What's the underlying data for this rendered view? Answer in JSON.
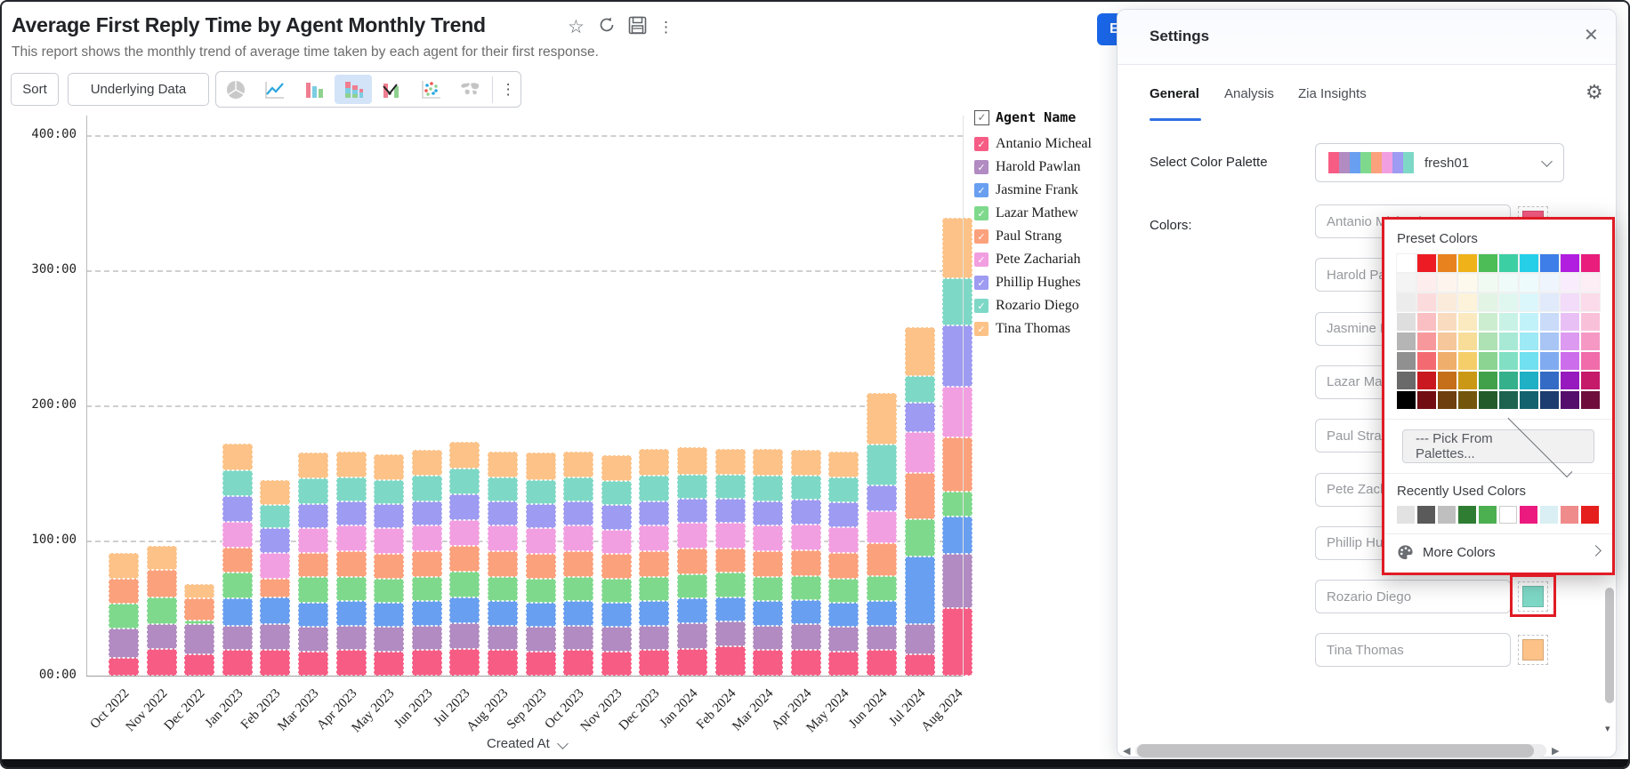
{
  "report": {
    "title": "Average First Reply Time by Agent Monthly Trend",
    "subtitle": "This report shows the monthly trend of average time taken by each agent for their first response."
  },
  "toolbar": {
    "sort": "Sort",
    "underlying_data": "Underlying Data"
  },
  "edit_button_label": "E",
  "icons": {
    "star": "☆",
    "kebab": "⋮",
    "close": "✕",
    "gear": "⚙",
    "check": "✓",
    "left_arrow": "◀",
    "right_arrow": "▶",
    "down_arrow": "▾"
  },
  "chart_data": {
    "type": "bar",
    "stacked": true,
    "title": "Average First Reply Time by Agent Monthly Trend",
    "xlabel": "Created At",
    "ylabel": "",
    "ylim": [
      0,
      400
    ],
    "y_tick_values": [
      0,
      100,
      200,
      300,
      400
    ],
    "y_tick_labels": [
      "00:00",
      "100:00",
      "200:00",
      "300:00",
      "400:00"
    ],
    "grid": "horizontal-dashed",
    "legend_title": "Agent Name",
    "legend_position": "right",
    "categories": [
      "Oct 2022",
      "Nov 2022",
      "Dec 2022",
      "Jan 2023",
      "Feb 2023",
      "Mar 2023",
      "Apr 2023",
      "May 2023",
      "Jun 2023",
      "Jul 2023",
      "Aug 2023",
      "Sep 2023",
      "Oct 2023",
      "Nov 2023",
      "Dec 2023",
      "Jan 2024",
      "Feb 2024",
      "Mar 2024",
      "Apr 2024",
      "May 2024",
      "Jun 2024",
      "Jul 2024",
      "Aug 2024"
    ],
    "series": [
      {
        "name": "Antanio Micheal",
        "color": "#f75c84",
        "values": [
          13,
          20,
          16,
          19,
          19,
          18,
          19,
          18,
          19,
          20,
          19,
          18,
          19,
          18,
          19,
          20,
          22,
          19,
          19,
          18,
          19,
          16,
          50
        ]
      },
      {
        "name": "Harold Pawlan",
        "color": "#b18bc1",
        "values": [
          22,
          18,
          22,
          18,
          19,
          18,
          18,
          18,
          18,
          19,
          18,
          18,
          18,
          18,
          18,
          19,
          18,
          18,
          19,
          18,
          18,
          22,
          40
        ]
      },
      {
        "name": "Jasmine Frank",
        "color": "#699ff0",
        "values": [
          0,
          0,
          0,
          20,
          20,
          18,
          18,
          18,
          18,
          19,
          18,
          18,
          18,
          18,
          18,
          18,
          18,
          18,
          18,
          18,
          18,
          50,
          28
        ]
      },
      {
        "name": "Lazar Mathew",
        "color": "#7fd98d",
        "values": [
          18,
          20,
          3,
          19,
          0,
          19,
          18,
          18,
          18,
          19,
          18,
          18,
          18,
          18,
          18,
          18,
          18,
          18,
          18,
          18,
          19,
          28,
          18
        ]
      },
      {
        "name": "Paul Strang",
        "color": "#fba17c",
        "values": [
          19,
          20,
          16,
          19,
          14,
          18,
          19,
          18,
          19,
          19,
          19,
          18,
          19,
          18,
          19,
          19,
          18,
          19,
          19,
          19,
          24,
          34,
          40
        ]
      },
      {
        "name": "Pete Zachariah",
        "color": "#f29fe1",
        "values": [
          0,
          0,
          0,
          19,
          19,
          18,
          19,
          19,
          19,
          19,
          19,
          19,
          19,
          18,
          19,
          19,
          19,
          19,
          19,
          19,
          24,
          30,
          38
        ]
      },
      {
        "name": "Phillip Hughes",
        "color": "#9e9bf2",
        "values": [
          0,
          0,
          0,
          19,
          18,
          18,
          18,
          18,
          18,
          19,
          18,
          18,
          18,
          18,
          18,
          18,
          18,
          18,
          18,
          18,
          19,
          22,
          45
        ]
      },
      {
        "name": "Rozario Diego",
        "color": "#7ed8c6",
        "values": [
          0,
          0,
          0,
          19,
          17,
          19,
          18,
          18,
          19,
          19,
          18,
          18,
          18,
          18,
          19,
          18,
          18,
          19,
          18,
          19,
          30,
          20,
          35
        ]
      },
      {
        "name": "Tina Thomas",
        "color": "#fcc287",
        "values": [
          19,
          18,
          11,
          20,
          19,
          19,
          19,
          19,
          19,
          20,
          19,
          20,
          19,
          19,
          20,
          20,
          19,
          20,
          19,
          19,
          38,
          36,
          45
        ]
      }
    ]
  },
  "settings": {
    "title": "Settings",
    "tabs": [
      {
        "label": "General",
        "active": true
      },
      {
        "label": "Analysis",
        "active": false
      },
      {
        "label": "Zia Insights",
        "active": false
      }
    ],
    "palette": {
      "label": "Select Color Palette",
      "value": "fresh01",
      "chip_colors": [
        "#f75c84",
        "#b18bc1",
        "#699ff0",
        "#7fd98d",
        "#fba17c",
        "#f29fe1",
        "#9e9bf2",
        "#7ed8c6"
      ]
    },
    "colors_label": "Colors:",
    "popup": {
      "preset_title": "Preset Colors",
      "preset_base_colors": [
        "#ffffff",
        "#ed1c24",
        "#e8821e",
        "#efb319",
        "#4cbd57",
        "#3dcfa4",
        "#25cfe8",
        "#3d7ee8",
        "#b11ee0",
        "#e81d7c"
      ],
      "preset_gray_column": [
        "#ffffff",
        "#f4f4f4",
        "#ececec",
        "#dedede",
        "#b5b5b5",
        "#909090",
        "#6a6a6a",
        "#000000"
      ],
      "pick_from_palettes": "--- Pick From Palettes...",
      "recent_title": "Recently Used Colors",
      "recent_colors": [
        "#e2e2e2",
        "#5a5a5a",
        "#bfbfbf",
        "#2f7d33",
        "#4caf50",
        "#ffffff",
        "#ec1a7f",
        "#d9eff4",
        "#ef8b8b",
        "#e51e1e"
      ],
      "more_colors": "More Colors"
    }
  }
}
